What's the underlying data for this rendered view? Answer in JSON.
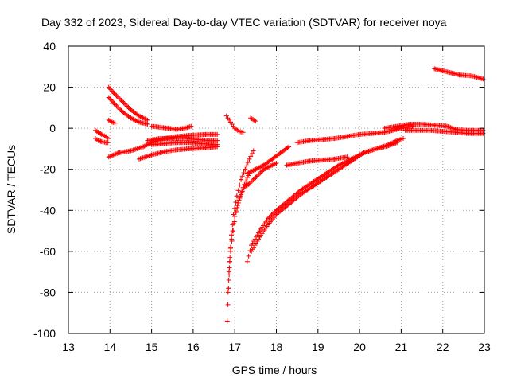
{
  "chart_data": {
    "type": "scatter",
    "title": "Day 332 of 2023, Sidereal Day-to-day VTEC variation (SDTVAR) for receiver noya",
    "xlabel": "GPS time / hours",
    "ylabel": "SDTVAR / TECUs",
    "xlim": [
      13,
      23
    ],
    "ylim": [
      -100,
      40
    ],
    "xticks": [
      13,
      14,
      15,
      16,
      17,
      18,
      19,
      20,
      21,
      22,
      23
    ],
    "yticks": [
      -100,
      -80,
      -60,
      -40,
      -20,
      0,
      20,
      40
    ],
    "grid": true,
    "marker": "+",
    "series_color": "#ff0000",
    "tracks": [
      [
        [
          13.65,
          -1
        ],
        [
          13.72,
          -2
        ],
        [
          13.8,
          -3
        ],
        [
          13.9,
          -4
        ],
        [
          13.95,
          -5
        ]
      ],
      [
        [
          13.65,
          -5
        ],
        [
          13.72,
          -6
        ],
        [
          13.8,
          -6.5
        ],
        [
          13.9,
          -7
        ],
        [
          13.95,
          -7
        ]
      ],
      [
        [
          13.97,
          20
        ],
        [
          14.1,
          17
        ],
        [
          14.3,
          13
        ],
        [
          14.5,
          9
        ],
        [
          14.7,
          6
        ],
        [
          14.9,
          4
        ]
      ],
      [
        [
          13.97,
          15
        ],
        [
          14.1,
          12
        ],
        [
          14.3,
          8
        ],
        [
          14.5,
          5
        ],
        [
          14.7,
          3
        ],
        [
          14.9,
          2
        ]
      ],
      [
        [
          13.97,
          4
        ],
        [
          14.05,
          3
        ],
        [
          14.12,
          2.5
        ]
      ],
      [
        [
          13.97,
          -14
        ],
        [
          14.2,
          -12
        ],
        [
          14.5,
          -11
        ],
        [
          14.8,
          -9
        ],
        [
          15.0,
          -7
        ],
        [
          15.3,
          -5
        ],
        [
          15.6,
          -4
        ],
        [
          15.9,
          -3.5
        ],
        [
          16.3,
          -3
        ],
        [
          16.58,
          -3
        ]
      ],
      [
        [
          14.7,
          -15
        ],
        [
          15.0,
          -13
        ],
        [
          15.3,
          -11.5
        ],
        [
          15.6,
          -10.5
        ],
        [
          15.9,
          -10
        ],
        [
          16.3,
          -9.5
        ],
        [
          16.58,
          -9
        ]
      ],
      [
        [
          14.9,
          -6
        ],
        [
          15.2,
          -5
        ],
        [
          15.5,
          -5
        ],
        [
          15.8,
          -5
        ],
        [
          16.1,
          -5.5
        ],
        [
          16.4,
          -6
        ],
        [
          16.58,
          -6
        ]
      ],
      [
        [
          15.0,
          -8
        ],
        [
          15.3,
          -7.5
        ],
        [
          15.6,
          -7
        ],
        [
          15.9,
          -7
        ],
        [
          16.2,
          -7.5
        ],
        [
          16.58,
          -8
        ]
      ],
      [
        [
          15.0,
          1
        ],
        [
          15.2,
          0.5
        ],
        [
          15.4,
          0
        ],
        [
          15.6,
          -0.5
        ],
        [
          15.8,
          0
        ],
        [
          15.95,
          1
        ]
      ],
      [
        [
          16.8,
          6
        ],
        [
          16.9,
          3
        ],
        [
          17.0,
          0
        ],
        [
          17.1,
          -1.5
        ],
        [
          17.2,
          -2
        ]
      ],
      [
        [
          17.38,
          5
        ],
        [
          17.5,
          3.5
        ]
      ],
      [
        [
          16.82,
          -94
        ],
        [
          16.85,
          -78
        ],
        [
          16.88,
          -65
        ],
        [
          16.92,
          -52
        ],
        [
          16.97,
          -42
        ],
        [
          17.05,
          -33
        ],
        [
          17.15,
          -25
        ],
        [
          17.25,
          -20
        ],
        [
          17.35,
          -15
        ],
        [
          17.45,
          -11
        ]
      ],
      [
        [
          16.84,
          -80
        ],
        [
          16.87,
          -68
        ],
        [
          16.9,
          -58
        ],
        [
          16.95,
          -50
        ],
        [
          17.0,
          -43
        ],
        [
          17.1,
          -35
        ],
        [
          17.2,
          -29
        ],
        [
          17.3,
          -24
        ],
        [
          17.35,
          -22
        ]
      ],
      [
        [
          16.86,
          -70
        ],
        [
          16.9,
          -60
        ],
        [
          16.96,
          -50
        ],
        [
          17.03,
          -41
        ],
        [
          17.12,
          -34
        ],
        [
          17.22,
          -29
        ],
        [
          17.3,
          -27
        ]
      ],
      [
        [
          17.3,
          -22
        ],
        [
          17.5,
          -20
        ],
        [
          17.7,
          -18
        ],
        [
          17.9,
          -15
        ],
        [
          18.1,
          -12
        ],
        [
          18.3,
          -9
        ]
      ],
      [
        [
          17.3,
          -28
        ],
        [
          17.5,
          -24
        ],
        [
          17.7,
          -20
        ],
        [
          17.9,
          -18
        ],
        [
          18.0,
          -17
        ]
      ],
      [
        [
          17.3,
          -65
        ],
        [
          17.4,
          -57
        ],
        [
          17.6,
          -50
        ],
        [
          17.8,
          -44
        ],
        [
          18.0,
          -40
        ],
        [
          18.3,
          -35
        ],
        [
          18.6,
          -30
        ],
        [
          18.9,
          -26
        ],
        [
          19.2,
          -22
        ],
        [
          19.5,
          -18
        ],
        [
          19.8,
          -15
        ],
        [
          20.1,
          -12
        ],
        [
          20.4,
          -10
        ],
        [
          20.7,
          -8
        ],
        [
          20.9,
          -6
        ],
        [
          21.05,
          -5
        ]
      ],
      [
        [
          17.4,
          -60
        ],
        [
          17.6,
          -53
        ],
        [
          17.8,
          -47
        ],
        [
          18.0,
          -42
        ],
        [
          18.3,
          -37
        ],
        [
          18.6,
          -32
        ],
        [
          18.9,
          -28
        ],
        [
          19.2,
          -24
        ],
        [
          19.5,
          -20
        ],
        [
          19.8,
          -16
        ],
        [
          20.1,
          -12
        ],
        [
          20.4,
          -10
        ],
        [
          20.7,
          -8.5
        ],
        [
          20.9,
          -7
        ]
      ],
      [
        [
          18.25,
          -18
        ],
        [
          18.5,
          -17
        ],
        [
          18.8,
          -16
        ],
        [
          19.1,
          -15.5
        ],
        [
          19.4,
          -15
        ],
        [
          19.7,
          -14
        ]
      ],
      [
        [
          18.5,
          -7
        ],
        [
          18.8,
          -6
        ],
        [
          19.1,
          -5.5
        ],
        [
          19.4,
          -5
        ],
        [
          19.7,
          -4
        ],
        [
          20.0,
          -3
        ],
        [
          20.3,
          -2.5
        ],
        [
          20.6,
          -2
        ],
        [
          20.8,
          -1
        ],
        [
          21.0,
          0
        ],
        [
          21.3,
          1
        ]
      ],
      [
        [
          20.6,
          0
        ],
        [
          20.9,
          1
        ],
        [
          21.2,
          2
        ],
        [
          21.5,
          2
        ],
        [
          21.8,
          1.5
        ],
        [
          22.1,
          1
        ],
        [
          22.3,
          -0.5
        ],
        [
          22.6,
          -1
        ],
        [
          22.97,
          -1
        ]
      ],
      [
        [
          21.1,
          -1
        ],
        [
          21.4,
          -1
        ],
        [
          21.7,
          -1
        ],
        [
          22.0,
          -1.5
        ],
        [
          22.3,
          -2
        ],
        [
          22.6,
          -2.5
        ],
        [
          22.97,
          -2.5
        ]
      ],
      [
        [
          21.8,
          29
        ],
        [
          22.0,
          28
        ],
        [
          22.2,
          27
        ],
        [
          22.4,
          26
        ],
        [
          22.7,
          25.5
        ],
        [
          22.97,
          24
        ]
      ]
    ]
  }
}
